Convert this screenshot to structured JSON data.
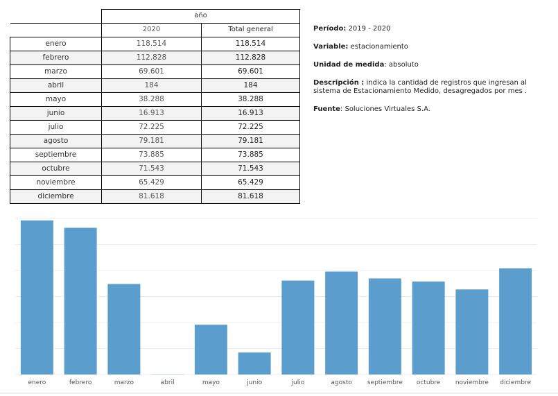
{
  "table": {
    "group_header": "año",
    "col_2020": "2020",
    "col_total": "Total general",
    "rows": [
      {
        "month": "enero",
        "v2020": "118.514",
        "total": "118.514"
      },
      {
        "month": "febrero",
        "v2020": "112.828",
        "total": "112.828"
      },
      {
        "month": "marzo",
        "v2020": "69.601",
        "total": "69.601"
      },
      {
        "month": "abril",
        "v2020": "184",
        "total": "184"
      },
      {
        "month": "mayo",
        "v2020": "38.288",
        "total": "38.288"
      },
      {
        "month": "junio",
        "v2020": "16.913",
        "total": "16.913"
      },
      {
        "month": "julio",
        "v2020": "72.225",
        "total": "72.225"
      },
      {
        "month": "agosto",
        "v2020": "79.181",
        "total": "79.181"
      },
      {
        "month": "septiembre",
        "v2020": "73.885",
        "total": "73.885"
      },
      {
        "month": "octubre",
        "v2020": "71.543",
        "total": "71.543"
      },
      {
        "month": "noviembre",
        "v2020": "65.429",
        "total": "65.429"
      },
      {
        "month": "diciembre",
        "v2020": "81.618",
        "total": "81.618"
      }
    ]
  },
  "info": {
    "periodo_label": "Período:",
    "periodo_value": "2019 - 2020",
    "variable_label": "Variable:",
    "variable_value": "estacionamiento",
    "unidad_label": "Unidad de medida",
    "unidad_value": ":  absoluto",
    "descripcion_label": "Descripción :",
    "descripcion_value": " indica la cantidad de registros que ingresan al sistema de Estacionamiento Medido, desagregados por  mes .",
    "fuente_label": "Fuente",
    "fuente_value": ":  Soluciones Virtuales S.A."
  },
  "chart_data": {
    "type": "bar",
    "categories": [
      "enero",
      "febrero",
      "marzo",
      "abril",
      "mayo",
      "junio",
      "julio",
      "agosto",
      "septiembre",
      "octubre",
      "noviembre",
      "diciembre"
    ],
    "values": [
      118514,
      112828,
      69601,
      184,
      38288,
      16913,
      72225,
      79181,
      73885,
      71543,
      65429,
      81618
    ],
    "title": "",
    "xlabel": "",
    "ylabel": "",
    "ylim": [
      0,
      120000
    ],
    "grid": true,
    "bar_color": "#5b9ecd",
    "grid_color": "#ececec"
  }
}
